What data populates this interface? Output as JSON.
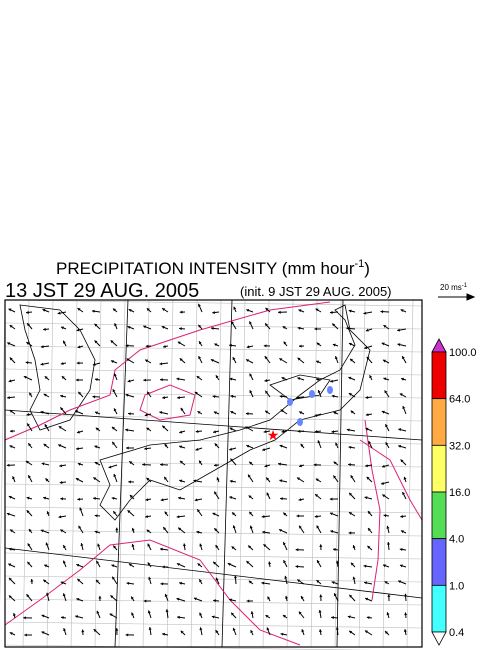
{
  "title": {
    "text": "PRECIPITATION INTENSITY (mm hour",
    "sup": "-1",
    "close": ")"
  },
  "time": "13 JST 29 AUG. 2005",
  "init": "(init. 9 JST 29 AUG. 2005)",
  "vector_legend": {
    "text": "20 ms",
    "sup": "-1"
  },
  "colorbar": {
    "labels": [
      "100.0",
      "64.0",
      "32.0",
      "16.0",
      "4.0",
      "1.0",
      "0.4"
    ],
    "colors": [
      "#ee0000",
      "#ffaa44",
      "#ffff66",
      "#55dd55",
      "#6666ff",
      "#44ffff"
    ],
    "over_color": "#cc33cc",
    "under_color": "#ffffff"
  }
}
